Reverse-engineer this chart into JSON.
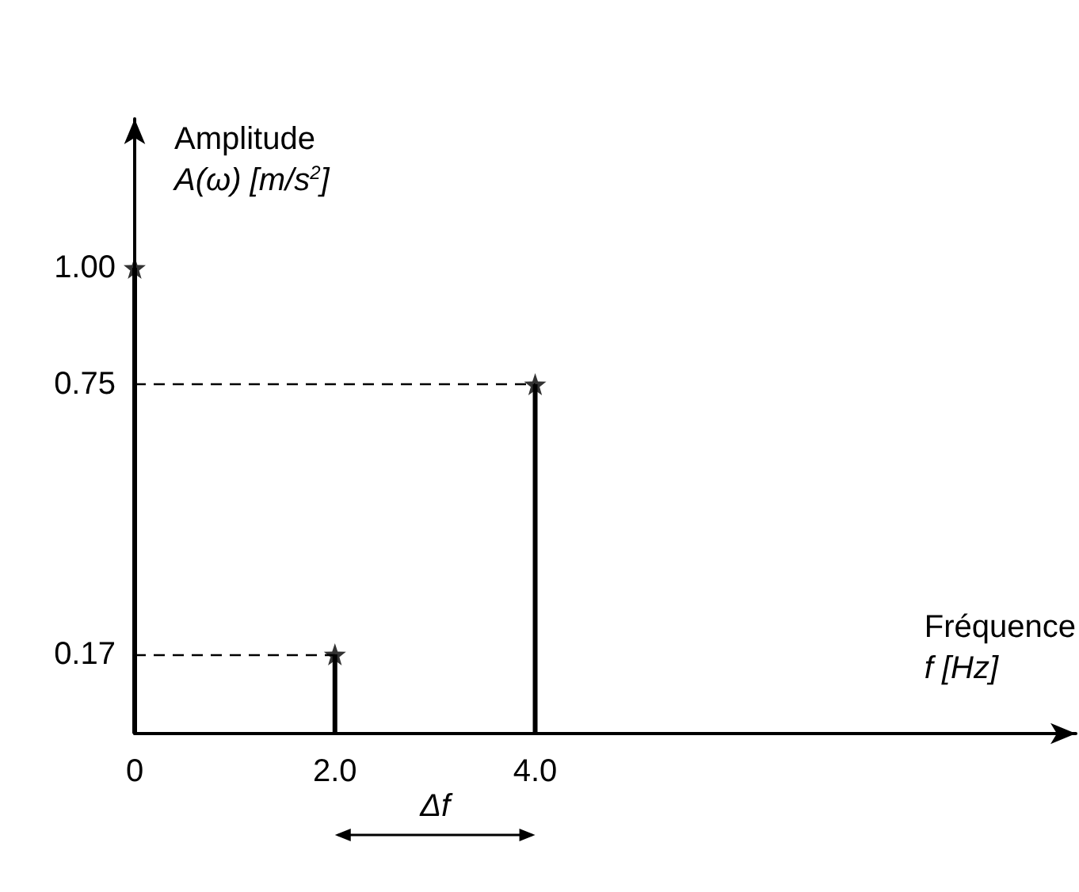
{
  "chart_data": {
    "type": "lollipop",
    "xlabel": "Fréquence\nf [Hz]",
    "ylabel": "Amplitude\nA(ω) [m/s$^{2}$]",
    "x": [
      0,
      2,
      4
    ],
    "values": [
      1,
      0.17,
      0.75
    ],
    "color": "#000000",
    "marker": "star",
    "xlim": [
      0,
      9.4
    ],
    "ylim": [
      0,
      1.32
    ],
    "xticks": [
      0,
      {
        "value": 2,
        "label": "2.0"
      },
      {
        "value": 4,
        "label": "4.0"
      }
    ],
    "yticks": [
      0.17,
      0.75,
      {
        "value": 1,
        "label": "1.00"
      }
    ],
    "ref_lines": [
      {
        "axis": "y",
        "value": 0.75,
        "line_style": "dashed"
      },
      {
        "axis": "y",
        "value": 0.17,
        "line_style": "dashed"
      }
    ],
    "annotations": [
      "Δf"
    ]
  }
}
